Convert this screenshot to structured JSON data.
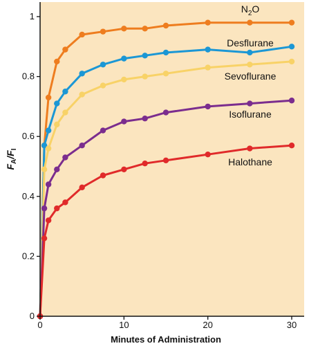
{
  "chart_data": {
    "type": "line",
    "xlabel": "Minutes of Administration",
    "ylabel": {
      "main": "F",
      "sub_a": "A",
      "sep": "/",
      "main2": "F",
      "sub_i": "I"
    },
    "xlim": [
      0,
      30
    ],
    "ylim": [
      0,
      1
    ],
    "xticks": [
      0,
      10,
      20,
      30
    ],
    "yticks": [
      0,
      0.2,
      0.4,
      0.6,
      0.8,
      1
    ],
    "ytick_labels": [
      "0",
      "0.2",
      "0.4",
      "0.6",
      "0.8",
      "1"
    ],
    "xtick_labels": [
      "0",
      "10",
      "20",
      "30"
    ],
    "grid": false,
    "background_color": "#fbe5bf",
    "series": [
      {
        "name": "N2O",
        "label_text": "N",
        "label_sub": "2",
        "label_rest": "O",
        "color": "#ee7d1f",
        "x": [
          0,
          0.5,
          1,
          2,
          3,
          5,
          7.5,
          10,
          12.5,
          15,
          20,
          25,
          30
        ],
        "y": [
          0,
          0.57,
          0.73,
          0.85,
          0.89,
          0.94,
          0.95,
          0.96,
          0.96,
          0.97,
          0.98,
          0.98,
          0.98
        ]
      },
      {
        "name": "Desflurane",
        "color": "#1b97d5",
        "x": [
          0,
          0.5,
          1,
          2,
          3,
          5,
          7.5,
          10,
          12.5,
          15,
          20,
          25,
          30
        ],
        "y": [
          0,
          0.57,
          0.62,
          0.71,
          0.75,
          0.81,
          0.84,
          0.86,
          0.87,
          0.88,
          0.89,
          0.88,
          0.9
        ]
      },
      {
        "name": "Sevoflurane",
        "color": "#f8d267",
        "x": [
          0,
          0.5,
          1,
          2,
          3,
          5,
          7.5,
          10,
          12.5,
          15,
          20,
          25,
          30
        ],
        "y": [
          0,
          0.49,
          0.56,
          0.64,
          0.68,
          0.74,
          0.77,
          0.79,
          0.8,
          0.81,
          0.83,
          0.84,
          0.85
        ]
      },
      {
        "name": "Isoflurane",
        "color": "#7b2d8e",
        "x": [
          0,
          0.5,
          1,
          2,
          3,
          5,
          7.5,
          10,
          12.5,
          15,
          20,
          25,
          30
        ],
        "y": [
          0,
          0.36,
          0.44,
          0.49,
          0.53,
          0.57,
          0.62,
          0.65,
          0.66,
          0.68,
          0.7,
          0.71,
          0.72
        ]
      },
      {
        "name": "Halothane",
        "color": "#e02a2a",
        "x": [
          0,
          0.5,
          1,
          2,
          3,
          5,
          7.5,
          10,
          12.5,
          15,
          20,
          25,
          30
        ],
        "y": [
          0,
          0.26,
          0.32,
          0.36,
          0.38,
          0.43,
          0.47,
          0.49,
          0.51,
          0.52,
          0.54,
          0.56,
          0.57
        ]
      }
    ]
  }
}
